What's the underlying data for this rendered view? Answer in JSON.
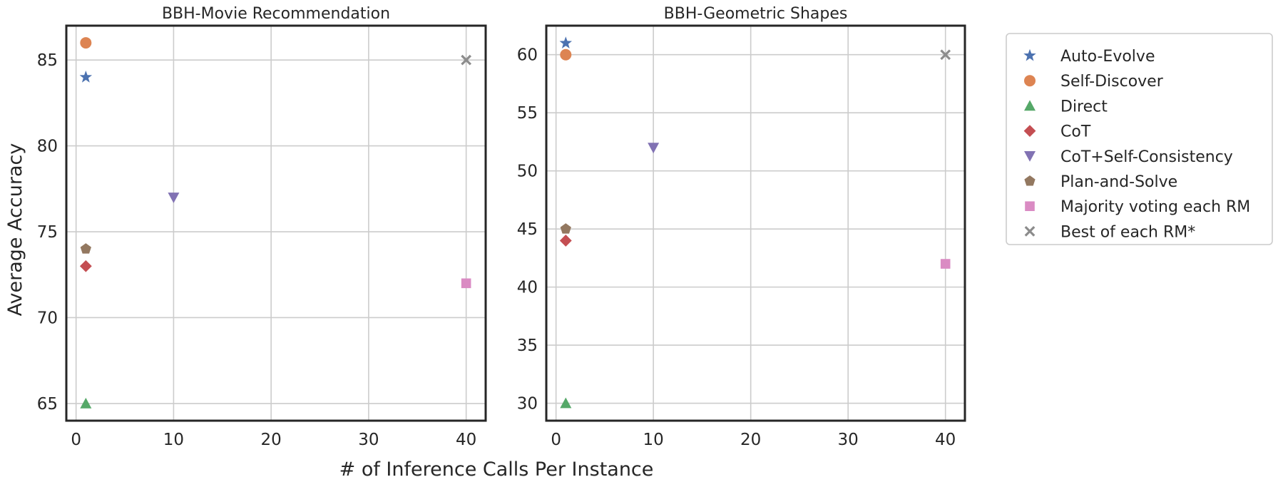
{
  "chart_data": [
    {
      "type": "scatter",
      "title": "BBH-Movie Recommendation",
      "xlabel": "# of Inference Calls Per Instance",
      "ylabel": "Average Accuracy",
      "xlim": [
        -1,
        42
      ],
      "ylim": [
        64,
        87
      ],
      "xticks": [
        0,
        10,
        20,
        30,
        40
      ],
      "yticks": [
        65,
        70,
        75,
        80,
        85
      ],
      "grid": true,
      "series": [
        {
          "name": "Auto-Evolve",
          "x": 1,
          "y": 84
        },
        {
          "name": "Self-Discover",
          "x": 1,
          "y": 86
        },
        {
          "name": "Direct",
          "x": 1,
          "y": 65
        },
        {
          "name": "CoT",
          "x": 1,
          "y": 73
        },
        {
          "name": "CoT+Self-Consistency",
          "x": 10,
          "y": 77
        },
        {
          "name": "Plan-and-Solve",
          "x": 1,
          "y": 74
        },
        {
          "name": "Majority voting each RM",
          "x": 40,
          "y": 72
        },
        {
          "name": "Best of each RM*",
          "x": 40,
          "y": 85
        }
      ]
    },
    {
      "type": "scatter",
      "title": "BBH-Geometric Shapes",
      "xlabel": "# of Inference Calls Per Instance",
      "ylabel": "",
      "xlim": [
        -1,
        42
      ],
      "ylim": [
        28.5,
        62.5
      ],
      "xticks": [
        0,
        10,
        20,
        30,
        40
      ],
      "yticks": [
        30,
        35,
        40,
        45,
        50,
        55,
        60
      ],
      "grid": true,
      "series": [
        {
          "name": "Auto-Evolve",
          "x": 1,
          "y": 61
        },
        {
          "name": "Self-Discover",
          "x": 1,
          "y": 60
        },
        {
          "name": "Direct",
          "x": 1,
          "y": 30
        },
        {
          "name": "CoT",
          "x": 1,
          "y": 44
        },
        {
          "name": "CoT+Self-Consistency",
          "x": 10,
          "y": 52
        },
        {
          "name": "Plan-and-Solve",
          "x": 1,
          "y": 45
        },
        {
          "name": "Majority voting each RM",
          "x": 40,
          "y": 42
        },
        {
          "name": "Best of each RM*",
          "x": 40,
          "y": 60
        }
      ]
    }
  ],
  "legend": {
    "position": "right",
    "entries": [
      {
        "name": "Auto-Evolve",
        "marker": "star",
        "color": "#4c72b0"
      },
      {
        "name": "Self-Discover",
        "marker": "circle",
        "color": "#dd8452"
      },
      {
        "name": "Direct",
        "marker": "triangle-up",
        "color": "#55a868"
      },
      {
        "name": "CoT",
        "marker": "diamond",
        "color": "#c44e52"
      },
      {
        "name": "CoT+Self-Consistency",
        "marker": "triangle-down",
        "color": "#8172b3"
      },
      {
        "name": "Plan-and-Solve",
        "marker": "pentagon",
        "color": "#937860"
      },
      {
        "name": "Majority voting each RM",
        "marker": "square",
        "color": "#da8bc3"
      },
      {
        "name": "Best of each RM*",
        "marker": "x",
        "color": "#8c8c8c"
      }
    ]
  }
}
